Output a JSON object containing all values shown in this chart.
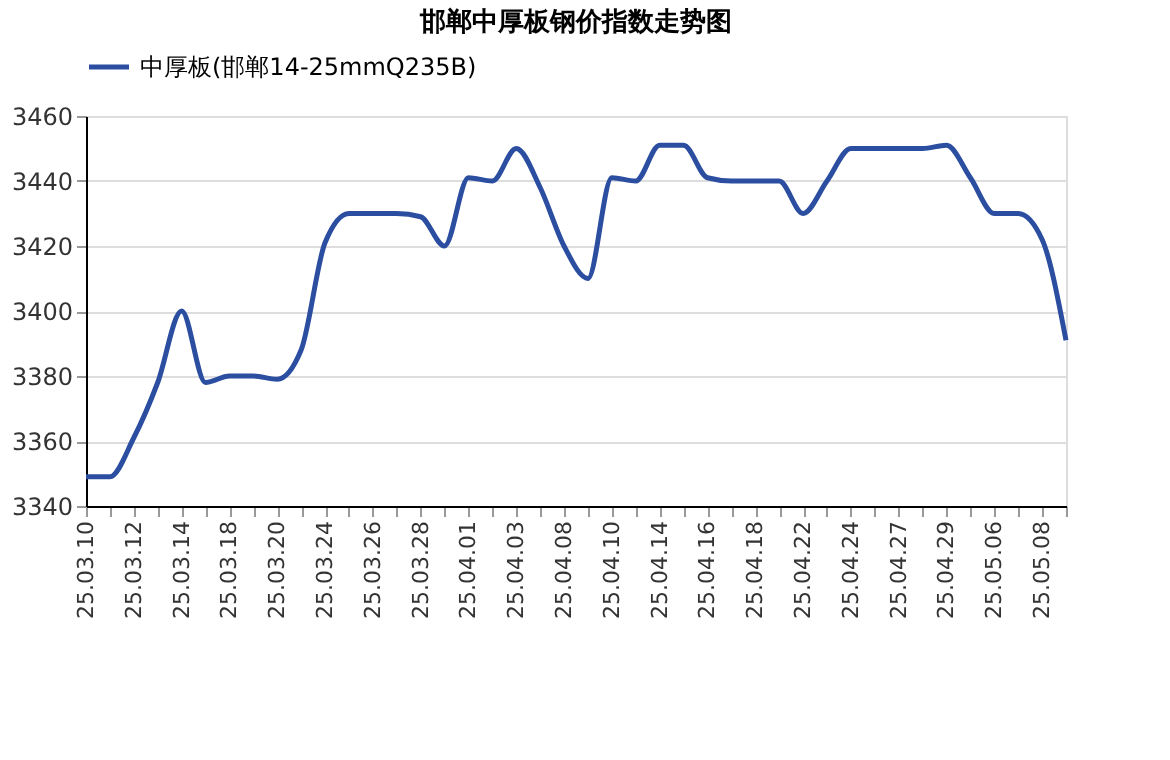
{
  "chart_data": {
    "type": "line",
    "title": "邯郸中厚板钢价指数走势图",
    "categories": [
      "25.03.10",
      null,
      "25.03.12",
      null,
      "25.03.14",
      null,
      "25.03.18",
      null,
      "25.03.20",
      null,
      "25.03.24",
      null,
      "25.03.26",
      null,
      "25.03.28",
      null,
      "25.04.01",
      null,
      "25.04.03",
      null,
      "25.04.08",
      null,
      "25.04.10",
      null,
      "25.04.14",
      null,
      "25.04.16",
      null,
      "25.04.18",
      null,
      "25.04.22",
      null,
      "25.04.24",
      null,
      "25.04.27",
      null,
      "25.04.29",
      null,
      "25.05.06",
      null,
      "25.05.08",
      null
    ],
    "series": [
      {
        "name": "中厚板(邯郸14-25mmQ235B)",
        "color": "#2b4ea0",
        "values": [
          3349,
          3349,
          3361,
          3378,
          3400,
          3378,
          3380,
          3380,
          3379,
          3388,
          3421,
          3430,
          3430,
          3430,
          3429,
          3420,
          3441,
          3440,
          3450,
          3438,
          3420,
          3410,
          3441,
          3440,
          3451,
          3451,
          3441,
          3440,
          3440,
          3440,
          3430,
          3440,
          3450,
          3450,
          3450,
          3450,
          3451,
          3441,
          3430,
          3430,
          3422,
          3391
        ]
      }
    ],
    "ylim": [
      3340,
      3460
    ],
    "yticks": [
      3340,
      3360,
      3380,
      3400,
      3420,
      3440,
      3460
    ],
    "grid": "y",
    "legend": "top",
    "marker": "none",
    "line_style": "solid"
  }
}
